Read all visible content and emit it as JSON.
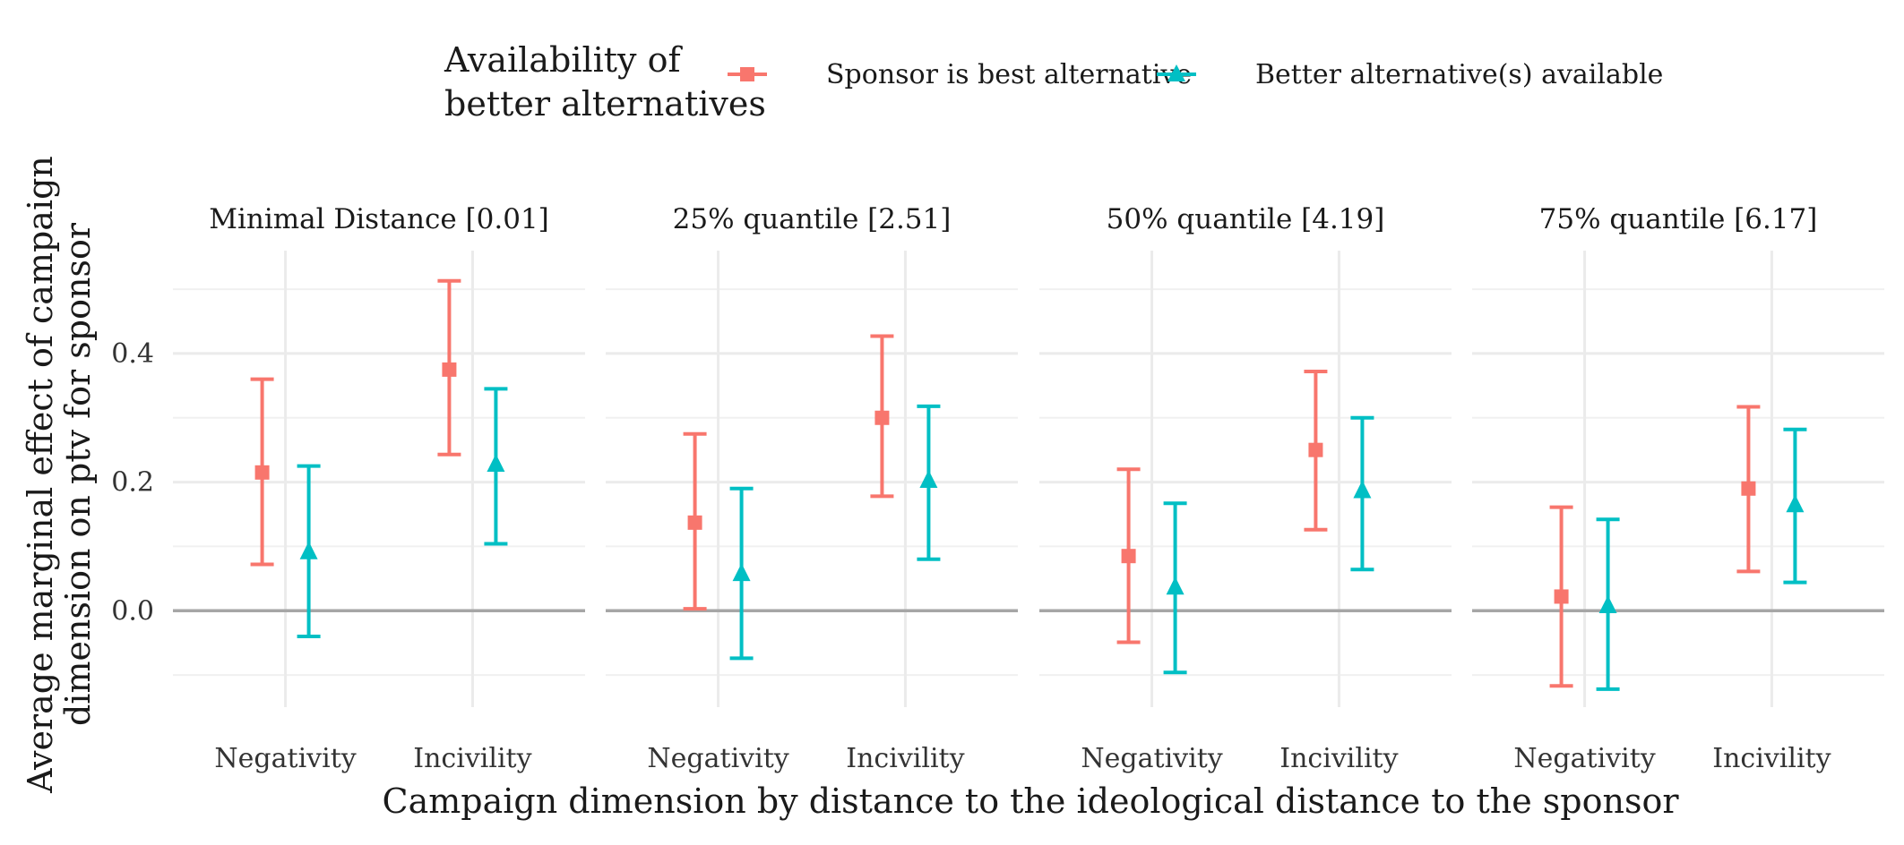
{
  "chart_data": {
    "type": "errorbar",
    "ylabel_lines": [
      "Average marginal effect of campaign",
      "dimension on ptv for sponsor"
    ],
    "xlabel": "Campaign dimension by distance to the ideological distance to the sponsor",
    "legend": {
      "title_lines": [
        "Availability of",
        "better alternatives"
      ],
      "position": "top"
    },
    "categories": [
      "Negativity",
      "Incivility"
    ],
    "y_ticks": [
      "0.0",
      "0.2",
      "0.4"
    ],
    "y_tick_values": [
      0.0,
      0.2,
      0.4
    ],
    "ylim": [
      -0.15,
      0.56
    ],
    "reference_line": 0,
    "grid": true,
    "series": [
      {
        "name": "Sponsor is best alternative",
        "color": "#F8766D",
        "marker": "square"
      },
      {
        "name": "Better alternative(s) available",
        "color": "#00BFC4",
        "marker": "triangle"
      }
    ],
    "panels": [
      {
        "title": "Minimal Distance [0.01]",
        "points": [
          [
            {
              "est": 0.215,
              "lo": 0.072,
              "hi": 0.36
            },
            {
              "est": 0.375,
              "lo": 0.243,
              "hi": 0.513
            }
          ],
          [
            {
              "est": 0.092,
              "lo": -0.04,
              "hi": 0.225
            },
            {
              "est": 0.228,
              "lo": 0.104,
              "hi": 0.345
            }
          ]
        ]
      },
      {
        "title": "25% quantile [2.51]",
        "points": [
          [
            {
              "est": 0.137,
              "lo": 0.003,
              "hi": 0.275
            },
            {
              "est": 0.3,
              "lo": 0.178,
              "hi": 0.427
            }
          ],
          [
            {
              "est": 0.058,
              "lo": -0.074,
              "hi": 0.19
            },
            {
              "est": 0.203,
              "lo": 0.08,
              "hi": 0.318
            }
          ]
        ]
      },
      {
        "title": "50% quantile [4.19]",
        "points": [
          [
            {
              "est": 0.085,
              "lo": -0.049,
              "hi": 0.22
            },
            {
              "est": 0.25,
              "lo": 0.126,
              "hi": 0.372
            }
          ],
          [
            {
              "est": 0.037,
              "lo": -0.096,
              "hi": 0.167
            },
            {
              "est": 0.187,
              "lo": 0.064,
              "hi": 0.3
            }
          ]
        ]
      },
      {
        "title": "75% quantile [6.17]",
        "points": [
          [
            {
              "est": 0.022,
              "lo": -0.117,
              "hi": 0.161
            },
            {
              "est": 0.19,
              "lo": 0.061,
              "hi": 0.317
            }
          ],
          [
            {
              "est": 0.008,
              "lo": -0.122,
              "hi": 0.142
            },
            {
              "est": 0.165,
              "lo": 0.044,
              "hi": 0.282
            }
          ]
        ]
      }
    ]
  }
}
